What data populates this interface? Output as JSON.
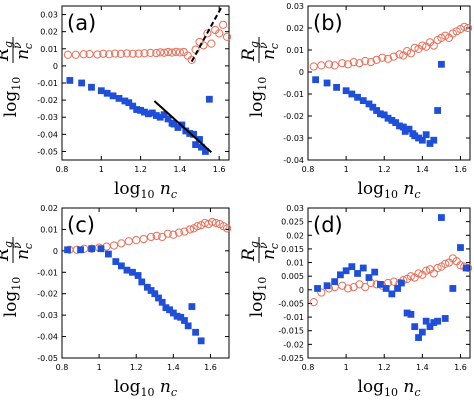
{
  "colors": {
    "circle_series": "#e8705a",
    "square_series": "#1f4fd8",
    "axes": "#000000"
  },
  "chart_data": [
    {
      "type": "scatter",
      "panel_label": "(a)",
      "xlabel": "log10 n_c",
      "ylabel": "log10 R_g/n_c^ν",
      "xlim": [
        0.8,
        1.65
      ],
      "ylim": [
        -0.055,
        0.035
      ],
      "xticks": [
        "0.8",
        "1",
        "1.2",
        "1.4",
        "1.6"
      ],
      "yticks": [
        "-0.05",
        "-0.04",
        "-0.03",
        "-0.02",
        "-0.01",
        "0",
        "0.01",
        "0.02",
        "0.03"
      ],
      "grid": false,
      "series": [
        {
          "marker": "open-circle",
          "x": [
            0.83,
            0.87,
            0.91,
            0.94,
            0.98,
            1.01,
            1.04,
            1.07,
            1.1,
            1.13,
            1.16,
            1.19,
            1.22,
            1.25,
            1.28,
            1.3,
            1.32,
            1.34,
            1.36,
            1.38,
            1.4,
            1.42,
            1.44,
            1.46,
            1.48,
            1.5,
            1.52,
            1.54,
            1.56,
            1.58,
            1.6,
            1.62,
            1.64
          ],
          "y": [
            0.0065,
            0.0065,
            0.0068,
            0.0069,
            0.0067,
            0.0071,
            0.0068,
            0.0072,
            0.007,
            0.0073,
            0.0071,
            0.0072,
            0.0074,
            0.0076,
            0.0075,
            0.0079,
            0.0077,
            0.0081,
            0.0078,
            0.0082,
            0.0079,
            0.0081,
            0.006,
            0.0035,
            0.0095,
            0.014,
            0.012,
            0.019,
            0.013,
            0.021,
            0.019,
            0.024,
            0.017
          ]
        },
        {
          "marker": "filled-square",
          "x": [
            0.84,
            0.9,
            0.95,
            1.0,
            1.03,
            1.06,
            1.09,
            1.12,
            1.14,
            1.16,
            1.18,
            1.2,
            1.22,
            1.24,
            1.26,
            1.28,
            1.3,
            1.32,
            1.34,
            1.36,
            1.37,
            1.39,
            1.41,
            1.43,
            1.45,
            1.47,
            1.48,
            1.5,
            1.51,
            1.53,
            1.55
          ],
          "y": [
            -0.0085,
            -0.01,
            -0.0125,
            -0.0145,
            -0.016,
            -0.0175,
            -0.019,
            -0.0205,
            -0.0215,
            -0.0235,
            -0.0255,
            -0.026,
            -0.027,
            -0.028,
            -0.0275,
            -0.029,
            -0.03,
            -0.0285,
            -0.031,
            -0.0335,
            -0.034,
            -0.036,
            -0.0345,
            -0.038,
            -0.0395,
            -0.04,
            -0.046,
            -0.043,
            -0.0475,
            -0.05,
            -0.0195
          ]
        }
      ],
      "annotations": [
        {
          "style": "solid",
          "x": [
            1.27,
            1.56
          ],
          "y": [
            -0.0205,
            -0.0505
          ]
        },
        {
          "style": "dashed",
          "x": [
            1.46,
            1.61
          ],
          "y": [
            0.0025,
            0.034
          ]
        }
      ]
    },
    {
      "type": "scatter",
      "panel_label": "(b)",
      "xlabel": "log10 n_c",
      "ylabel": "log10 R_g/n_c^ν",
      "xlim": [
        0.8,
        1.65
      ],
      "ylim": [
        -0.04,
        0.03
      ],
      "xticks": [
        "0.8",
        "1",
        "1.2",
        "1.4",
        "1.6"
      ],
      "yticks": [
        "-0.04",
        "-0.03",
        "-0.02",
        "-0.01",
        "0",
        "0.01",
        "0.02",
        "0.03"
      ],
      "grid": false,
      "series": [
        {
          "marker": "open-circle",
          "x": [
            0.83,
            0.87,
            0.91,
            0.94,
            0.98,
            1.01,
            1.04,
            1.07,
            1.1,
            1.13,
            1.16,
            1.19,
            1.22,
            1.25,
            1.28,
            1.3,
            1.32,
            1.34,
            1.36,
            1.38,
            1.4,
            1.42,
            1.44,
            1.46,
            1.48,
            1.5,
            1.52,
            1.54,
            1.56,
            1.58,
            1.6,
            1.62,
            1.64
          ],
          "y": [
            0.0025,
            0.003,
            0.0035,
            0.003,
            0.004,
            0.0035,
            0.0045,
            0.004,
            0.005,
            0.0045,
            0.0055,
            0.0065,
            0.006,
            0.007,
            0.008,
            0.0075,
            0.0095,
            0.0085,
            0.011,
            0.0105,
            0.012,
            0.0115,
            0.0135,
            0.012,
            0.0145,
            0.0155,
            0.0165,
            0.0155,
            0.0175,
            0.0185,
            0.0195,
            0.0205,
            0.02
          ]
        },
        {
          "marker": "filled-square",
          "x": [
            0.84,
            0.9,
            0.95,
            1.0,
            1.03,
            1.06,
            1.09,
            1.12,
            1.14,
            1.16,
            1.18,
            1.2,
            1.22,
            1.24,
            1.26,
            1.28,
            1.3,
            1.31,
            1.33,
            1.35,
            1.36,
            1.38,
            1.4,
            1.42,
            1.44,
            1.46,
            1.48,
            1.5
          ],
          "y": [
            -0.0035,
            -0.005,
            -0.007,
            -0.0085,
            -0.01,
            -0.0115,
            -0.013,
            -0.0145,
            -0.016,
            -0.0175,
            -0.019,
            -0.0195,
            -0.021,
            -0.022,
            -0.023,
            -0.0245,
            -0.025,
            -0.027,
            -0.026,
            -0.028,
            -0.029,
            -0.03,
            -0.031,
            -0.0285,
            -0.0325,
            -0.031,
            -0.0175,
            0.0035
          ]
        }
      ],
      "annotations": []
    },
    {
      "type": "scatter",
      "panel_label": "(c)",
      "xlabel": "log10 n_c",
      "ylabel": "log10 R_g/n_c^ν",
      "xlim": [
        0.8,
        1.7
      ],
      "ylim": [
        -0.05,
        0.02
      ],
      "xticks": [
        "0.8",
        "1",
        "1.2",
        "1.4",
        "1.6"
      ],
      "yticks": [
        "-0.05",
        "-0.04",
        "-0.03",
        "-0.02",
        "-0.01",
        "0",
        "0.01",
        "0.02"
      ],
      "grid": false,
      "series": [
        {
          "marker": "open-circle",
          "x": [
            0.84,
            0.88,
            0.92,
            0.96,
            1.0,
            1.04,
            1.08,
            1.12,
            1.16,
            1.2,
            1.24,
            1.28,
            1.31,
            1.34,
            1.37,
            1.4,
            1.43,
            1.46,
            1.49,
            1.51,
            1.53,
            1.55,
            1.57,
            1.59,
            1.61,
            1.63,
            1.65,
            1.67,
            1.69
          ],
          "y": [
            0.0005,
            0.0005,
            0.001,
            0.001,
            0.0015,
            0.002,
            0.0025,
            0.0035,
            0.0045,
            0.005,
            0.0055,
            0.0065,
            0.007,
            0.0065,
            0.008,
            0.0075,
            0.0085,
            0.009,
            0.01,
            0.0105,
            0.0115,
            0.012,
            0.013,
            0.0125,
            0.0135,
            0.013,
            0.0125,
            0.0115,
            0.0105
          ]
        },
        {
          "marker": "filled-square",
          "x": [
            0.83,
            0.9,
            0.96,
            1.01,
            1.05,
            1.09,
            1.12,
            1.15,
            1.18,
            1.21,
            1.23,
            1.26,
            1.28,
            1.3,
            1.32,
            1.34,
            1.36,
            1.38,
            1.4,
            1.42,
            1.44,
            1.46,
            1.48,
            1.5,
            1.52,
            1.55
          ],
          "y": [
            0.0005,
            0.0005,
            0.001,
            0.001,
            -0.0015,
            -0.005,
            -0.007,
            -0.009,
            -0.01,
            -0.0115,
            -0.0145,
            -0.017,
            -0.0185,
            -0.02,
            -0.022,
            -0.024,
            -0.0265,
            -0.0275,
            -0.029,
            -0.0305,
            -0.031,
            -0.0325,
            -0.035,
            -0.026,
            -0.038,
            -0.042
          ]
        }
      ],
      "annotations": []
    },
    {
      "type": "scatter",
      "panel_label": "(d)",
      "xlabel": "log10 n_c",
      "ylabel": "log10 R_g/n_c^ν",
      "xlim": [
        0.8,
        1.65
      ],
      "ylim": [
        -0.025,
        0.03
      ],
      "xticks": [
        "0.8",
        "1",
        "1.2",
        "1.4",
        "1.6"
      ],
      "yticks": [
        "-0.025",
        "-0.02",
        "-0.015",
        "-0.01",
        "-0.005",
        "0",
        "0.005",
        "0.01",
        "0.015",
        "0.02",
        "0.025",
        "0.03"
      ],
      "grid": false,
      "series": [
        {
          "marker": "open-circle",
          "x": [
            0.83,
            0.87,
            0.91,
            0.94,
            0.98,
            1.01,
            1.04,
            1.07,
            1.1,
            1.13,
            1.16,
            1.19,
            1.22,
            1.25,
            1.28,
            1.3,
            1.32,
            1.34,
            1.36,
            1.38,
            1.4,
            1.42,
            1.44,
            1.46,
            1.48,
            1.5,
            1.52,
            1.54,
            1.56,
            1.58,
            1.6,
            1.62,
            1.64
          ],
          "y": [
            -0.0045,
            -0.001,
            0.0005,
            0.001,
            0.0015,
            0.0005,
            0.001,
            0.002,
            0.001,
            0.0025,
            0.002,
            0.0015,
            0.0025,
            0.003,
            0.0025,
            0.0035,
            0.004,
            0.005,
            0.0045,
            0.006,
            0.0055,
            0.007,
            0.0075,
            0.006,
            0.008,
            0.0085,
            0.0095,
            0.01,
            0.0115,
            0.0105,
            0.009,
            0.0085,
            0.008
          ]
        },
        {
          "marker": "filled-square",
          "x": [
            0.85,
            0.9,
            0.94,
            0.97,
            1.0,
            1.03,
            1.06,
            1.09,
            1.12,
            1.15,
            1.18,
            1.21,
            1.24,
            1.27,
            1.29,
            1.32,
            1.34,
            1.36,
            1.38,
            1.4,
            1.42,
            1.44,
            1.46,
            1.48,
            1.5,
            1.52,
            1.56,
            1.6,
            1.63
          ],
          "y": [
            0.0005,
            0.0015,
            0.003,
            0.0055,
            0.007,
            0.0085,
            0.006,
            0.008,
            0.0045,
            0.0065,
            0.002,
            0.0005,
            -0.0015,
            0.0005,
            0.0025,
            -0.0085,
            -0.009,
            -0.0135,
            -0.0175,
            -0.0155,
            -0.0115,
            -0.0135,
            -0.012,
            -0.0115,
            0.0265,
            -0.0105,
            0.0005,
            0.0155,
            0.008
          ]
        }
      ],
      "annotations": []
    }
  ]
}
